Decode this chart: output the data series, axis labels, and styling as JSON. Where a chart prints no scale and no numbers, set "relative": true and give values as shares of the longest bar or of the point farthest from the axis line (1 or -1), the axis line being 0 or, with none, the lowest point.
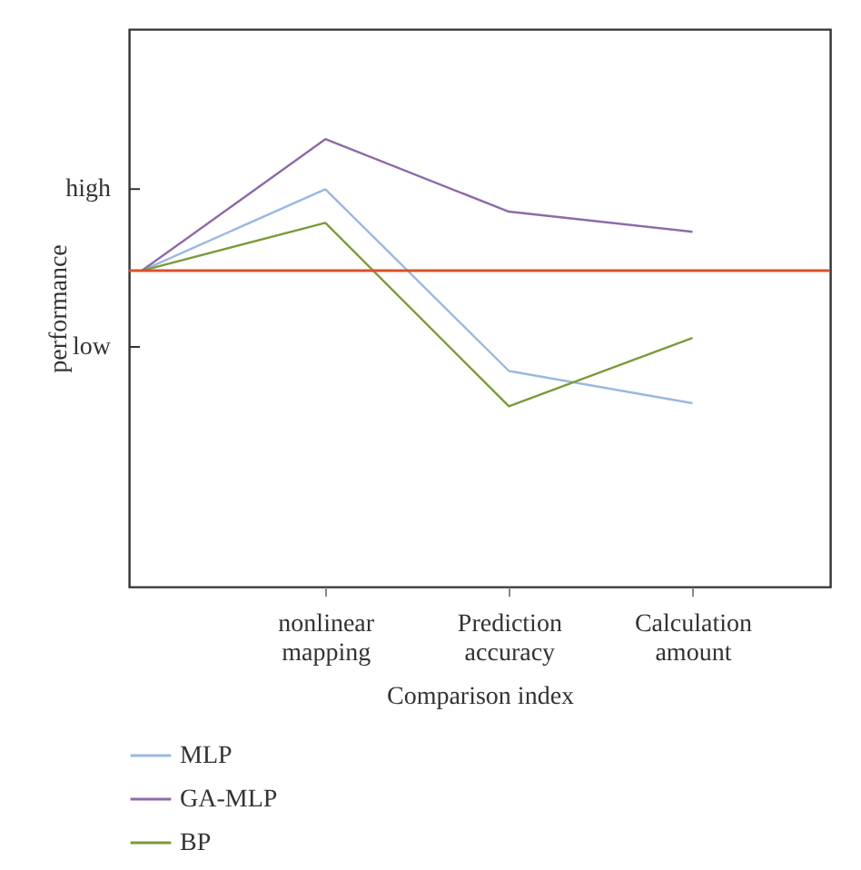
{
  "chart_data": {
    "type": "line",
    "relative": true,
    "xlabel": "Comparison index",
    "ylabel": "performance",
    "categories": [
      null,
      "nonlinear mapping",
      "Prediction accuracy",
      "Calculation amount"
    ],
    "series": [
      {
        "name": "MLP",
        "color": "#9ab8e0",
        "values": [
          0.706,
          0.888,
          0.482,
          0.41
        ]
      },
      {
        "name": "GA-MLP",
        "color": "#8e6aa8",
        "values": [
          0.706,
          1,
          0.838,
          0.793
        ]
      },
      {
        "name": "BP",
        "color": "#7a9a3a",
        "values": [
          0.706,
          0.813,
          0.403,
          0.556
        ]
      }
    ],
    "ref_lines": [
      {
        "axis": "y",
        "value": 0.706,
        "color": "#d9512c"
      }
    ],
    "annotations": [
      "high",
      "low"
    ],
    "legend": "bottom",
    "marker": "none",
    "line_style": "solid"
  }
}
